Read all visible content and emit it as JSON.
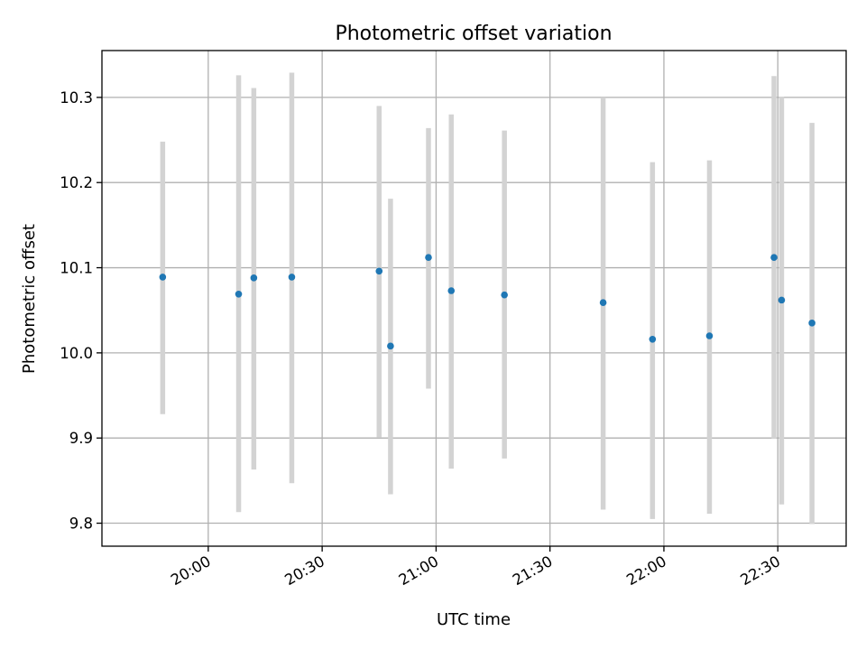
{
  "chart_data": {
    "type": "scatter",
    "title": "Photometric offset variation",
    "xlabel": "UTC time",
    "ylabel": "Photometric offset",
    "x_axis_type": "time",
    "xlim": [
      "19:32",
      "22:48"
    ],
    "ylim": [
      9.773,
      10.355
    ],
    "x_ticks": [
      "20:00",
      "20:30",
      "21:00",
      "21:30",
      "22:00",
      "22:30"
    ],
    "y_ticks": [
      "9.8",
      "9.9",
      "10.0",
      "10.1",
      "10.2",
      "10.3"
    ],
    "grid": true,
    "error_bar_color": "#d3d3d3",
    "point_color": "#1f77b4",
    "series": [
      {
        "points": [
          {
            "x": "19:48",
            "y": 10.089,
            "ylow": 9.928,
            "yhigh": 10.248
          },
          {
            "x": "20:08",
            "y": 10.069,
            "ylow": 9.813,
            "yhigh": 10.326
          },
          {
            "x": "20:12",
            "y": 10.088,
            "ylow": 9.863,
            "yhigh": 10.311
          },
          {
            "x": "20:22",
            "y": 10.089,
            "ylow": 9.847,
            "yhigh": 10.329
          },
          {
            "x": "20:45",
            "y": 10.096,
            "ylow": 9.901,
            "yhigh": 10.29
          },
          {
            "x": "20:48",
            "y": 10.008,
            "ylow": 9.834,
            "yhigh": 10.181
          },
          {
            "x": "20:58",
            "y": 10.112,
            "ylow": 9.958,
            "yhigh": 10.264
          },
          {
            "x": "21:04",
            "y": 10.073,
            "ylow": 9.864,
            "yhigh": 10.28
          },
          {
            "x": "21:18",
            "y": 10.068,
            "ylow": 9.876,
            "yhigh": 10.261
          },
          {
            "x": "21:44",
            "y": 10.059,
            "ylow": 9.816,
            "yhigh": 10.3
          },
          {
            "x": "21:57",
            "y": 10.016,
            "ylow": 9.805,
            "yhigh": 10.224
          },
          {
            "x": "22:12",
            "y": 10.02,
            "ylow": 9.811,
            "yhigh": 10.226
          },
          {
            "x": "22:29",
            "y": 10.112,
            "ylow": 9.899,
            "yhigh": 10.325
          },
          {
            "x": "22:31",
            "y": 10.062,
            "ylow": 9.822,
            "yhigh": 10.301
          },
          {
            "x": "22:39",
            "y": 10.035,
            "ylow": 9.799,
            "yhigh": 10.27
          }
        ]
      }
    ]
  }
}
